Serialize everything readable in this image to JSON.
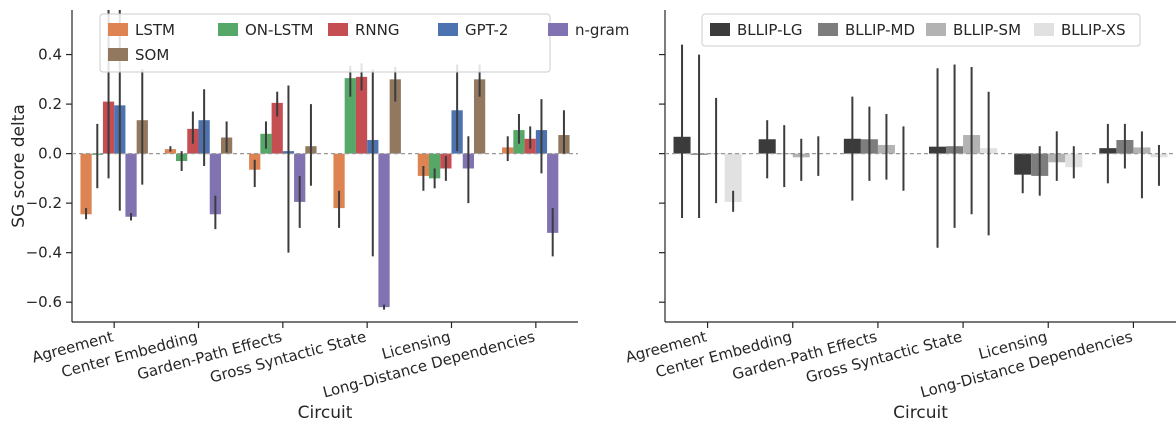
{
  "chart_data": [
    {
      "type": "bar",
      "ylabel": "SG score delta",
      "xlabel": "Circuit",
      "ylim": [
        -0.68,
        0.58
      ],
      "yticks": [
        -0.6,
        -0.4,
        -0.2,
        0.0,
        0.2,
        0.4
      ],
      "ytick_labels": [
        "−0.6",
        "−0.4",
        "−0.2",
        "0.0",
        "0.2",
        "0.4"
      ],
      "reference_line": 0,
      "legend_placement": "top",
      "categories": [
        "Agreement",
        "Center Embedding",
        "Garden-Path Effects",
        "Gross Syntactic State",
        "Licensing",
        "Long-Distance Dependencies"
      ],
      "series": [
        {
          "name": "LSTM",
          "color": "#dd8452",
          "values": [
            -0.245,
            0.018,
            -0.065,
            -0.22,
            -0.09,
            0.025
          ],
          "ci": [
            [
              -0.265,
              -0.22
            ],
            [
              0.008,
              0.03
            ],
            [
              -0.135,
              -0.025
            ],
            [
              -0.3,
              -0.15
            ],
            [
              -0.15,
              -0.05
            ],
            [
              -0.03,
              0.07
            ]
          ]
        },
        {
          "name": "ON-LSTM",
          "color": "#55a868",
          "values": [
            -0.005,
            -0.03,
            0.08,
            0.305,
            -0.1,
            0.095
          ],
          "ci": [
            [
              -0.14,
              0.12
            ],
            [
              -0.07,
              0.01
            ],
            [
              0.02,
              0.13
            ],
            [
              0.23,
              0.355
            ],
            [
              -0.14,
              -0.06
            ],
            [
              0.04,
              0.16
            ]
          ]
        },
        {
          "name": "RNNG",
          "color": "#c44e52",
          "values": [
            0.21,
            0.1,
            0.205,
            0.31,
            -0.06,
            0.06
          ],
          "ci": [
            [
              -0.1,
              0.58
            ],
            [
              0.04,
              0.17
            ],
            [
              0.15,
              0.25
            ],
            [
              0.255,
              0.365
            ],
            [
              -0.11,
              -0.01
            ],
            [
              0.02,
              0.11
            ]
          ]
        },
        {
          "name": "GPT-2",
          "color": "#4c72b0",
          "values": [
            0.195,
            0.135,
            0.01,
            0.055,
            0.175,
            0.095
          ],
          "ci": [
            [
              -0.23,
              0.58
            ],
            [
              -0.05,
              0.26
            ],
            [
              -0.4,
              0.275
            ],
            [
              -0.415,
              0.34
            ],
            [
              0.01,
              0.36
            ],
            [
              -0.08,
              0.22
            ]
          ]
        },
        {
          "name": "n-gram",
          "color": "#8172b2",
          "values": [
            -0.255,
            -0.245,
            -0.195,
            -0.62,
            -0.06,
            -0.32
          ],
          "ci": [
            [
              -0.27,
              -0.24
            ],
            [
              -0.305,
              -0.17
            ],
            [
              -0.3,
              -0.09
            ],
            [
              -0.63,
              -0.61
            ],
            [
              -0.2,
              0.07
            ],
            [
              -0.415,
              -0.22
            ]
          ]
        },
        {
          "name": "SOM",
          "color": "#937860",
          "values": [
            0.135,
            0.065,
            0.03,
            0.3,
            0.3,
            0.075
          ],
          "ci": [
            [
              -0.125,
              0.34
            ],
            [
              0.005,
              0.13
            ],
            [
              -0.13,
              0.2
            ],
            [
              0.21,
              0.35
            ],
            [
              0.23,
              0.36
            ],
            [
              0.0,
              0.175
            ]
          ]
        }
      ]
    },
    {
      "type": "bar",
      "ylabel": "",
      "xlabel": "Circuit",
      "ylim": [
        -0.68,
        0.58
      ],
      "yticks": [
        -0.6,
        -0.4,
        -0.2,
        0.0,
        0.2,
        0.4
      ],
      "ytick_labels": [],
      "reference_line": 0,
      "legend_placement": "top",
      "categories": [
        "Agreement",
        "Center Embedding",
        "Garden-Path Effects",
        "Gross Syntactic State",
        "Licensing",
        "Long-Distance Dependencies"
      ],
      "series": [
        {
          "name": "BLLIP-LG",
          "color": "#3b3b3b",
          "values": [
            0.068,
            0.058,
            0.06,
            0.028,
            -0.085,
            0.022
          ],
          "ci": [
            [
              -0.26,
              0.44
            ],
            [
              -0.1,
              0.135
            ],
            [
              -0.19,
              0.23
            ],
            [
              -0.38,
              0.345
            ],
            [
              -0.16,
              -0.03
            ],
            [
              -0.12,
              0.12
            ]
          ]
        },
        {
          "name": "BLLIP-MD",
          "color": "#7d7d7d",
          "values": [
            -0.005,
            0.0,
            0.058,
            0.03,
            -0.09,
            0.055
          ],
          "ci": [
            [
              -0.26,
              0.4
            ],
            [
              -0.135,
              0.115
            ],
            [
              -0.11,
              0.19
            ],
            [
              -0.3,
              0.36
            ],
            [
              -0.17,
              0.03
            ],
            [
              -0.06,
              0.12
            ]
          ]
        },
        {
          "name": "BLLIP-SM",
          "color": "#b3b3b3",
          "values": [
            0.0,
            -0.015,
            0.035,
            0.075,
            -0.035,
            0.025
          ],
          "ci": [
            [
              -0.2,
              0.225
            ],
            [
              -0.11,
              0.06
            ],
            [
              -0.105,
              0.16
            ],
            [
              -0.245,
              0.35
            ],
            [
              -0.11,
              0.09
            ],
            [
              -0.18,
              0.09
            ]
          ]
        },
        {
          "name": "BLLIP-XS",
          "color": "#e1e1e1",
          "values": [
            -0.195,
            0.0,
            0.0,
            0.022,
            -0.055,
            -0.015
          ],
          "ci": [
            [
              -0.235,
              -0.15
            ],
            [
              -0.09,
              0.07
            ],
            [
              -0.15,
              0.11
            ],
            [
              -0.33,
              0.25
            ],
            [
              -0.1,
              0.03
            ],
            [
              -0.13,
              0.035
            ]
          ]
        }
      ]
    }
  ]
}
